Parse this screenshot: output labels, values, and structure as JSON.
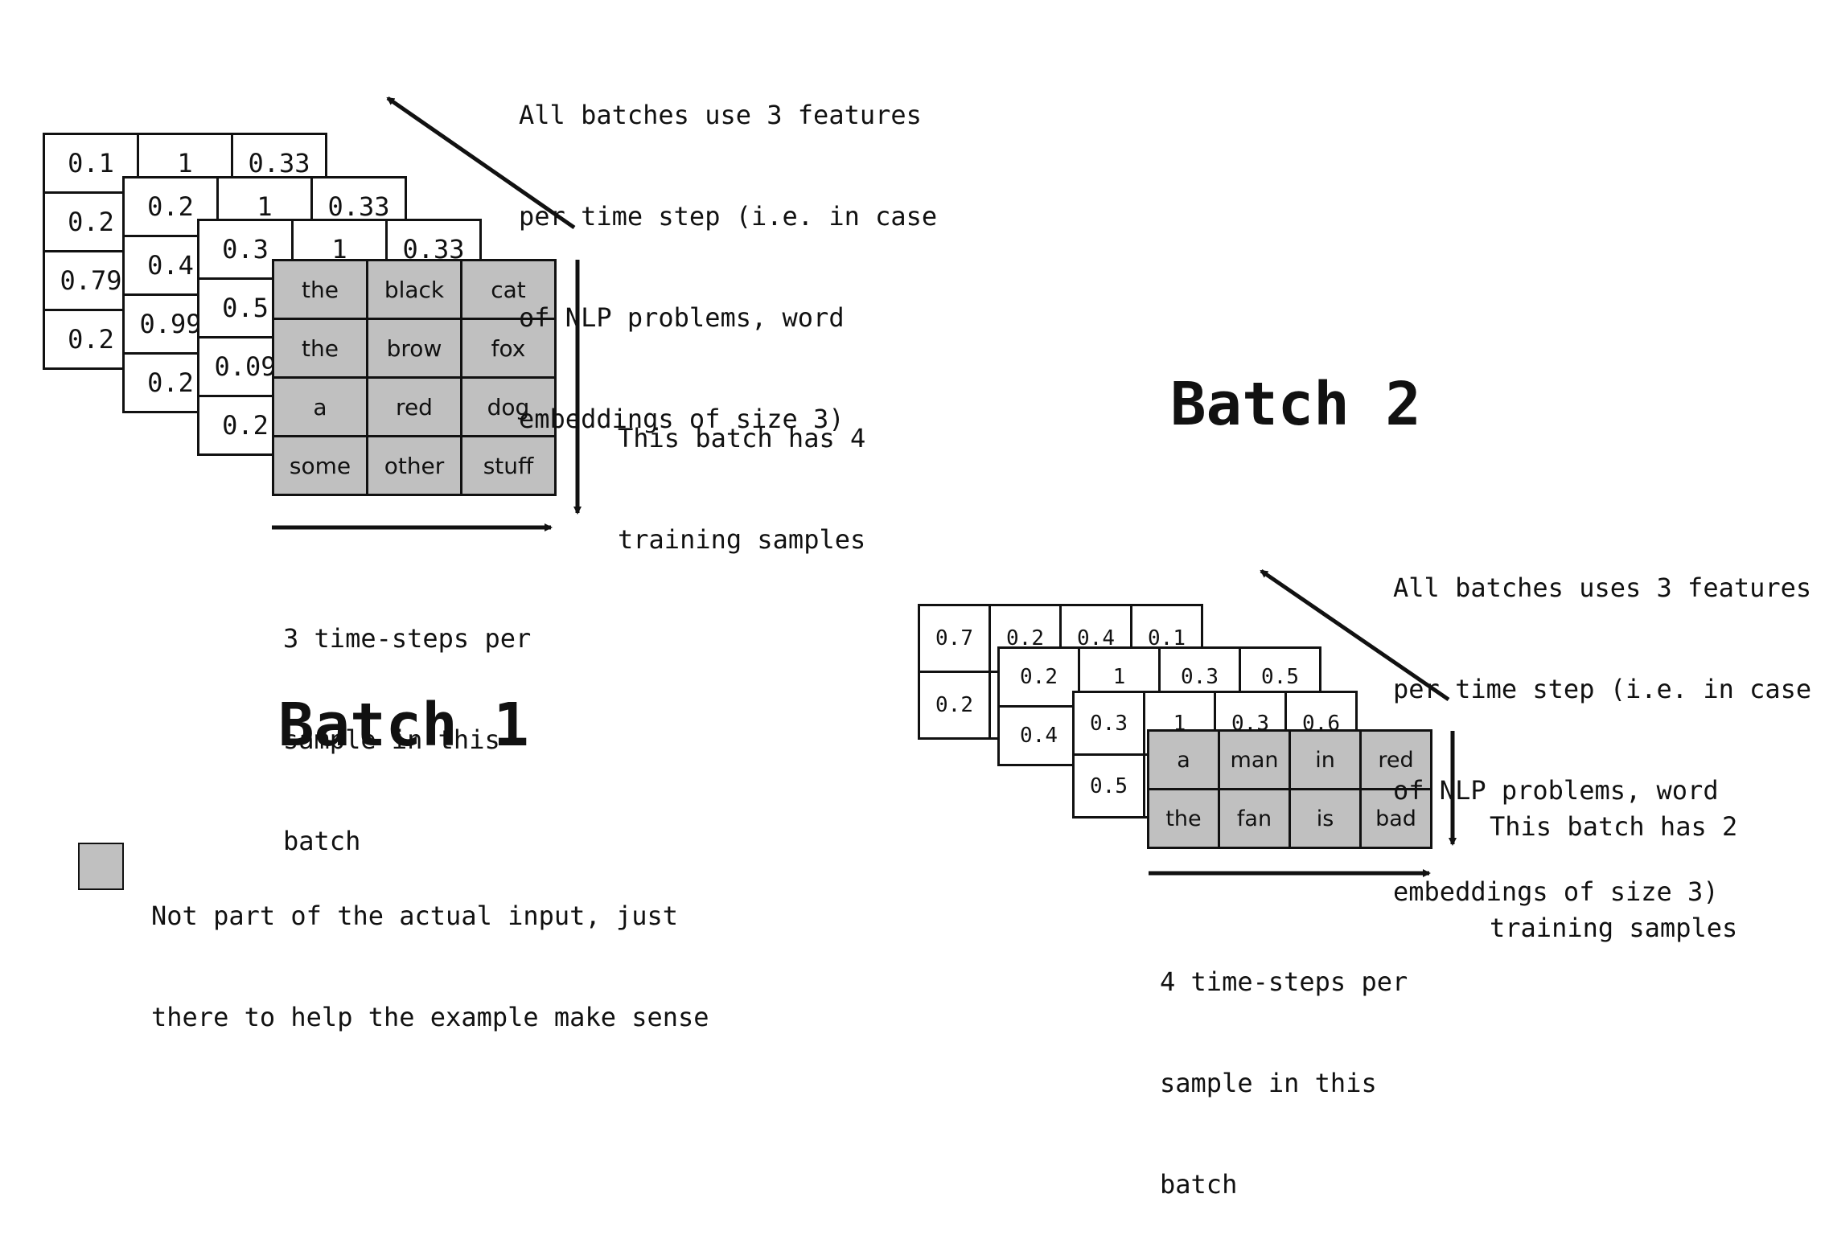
{
  "batch1": {
    "title": "Batch 1",
    "features_note": [
      "All batches use 3 features",
      "per time step (i.e. in case",
      "of NLP problems, word",
      "embeddings of size 3)"
    ],
    "samples_note": [
      "This batch has 4",
      "training samples"
    ],
    "timesteps_note": [
      "3 time-steps per",
      "sample in this",
      "batch"
    ],
    "layer1": [
      [
        "0.1",
        "1",
        "0.33"
      ],
      [
        "0.2",
        "",
        ""
      ],
      [
        "0.79",
        "",
        ""
      ],
      [
        "0.2",
        "",
        ""
      ]
    ],
    "layer2": [
      [
        "0.2",
        "1",
        "0.33"
      ],
      [
        "0.4",
        "",
        ""
      ],
      [
        "0.99",
        "",
        ""
      ],
      [
        "0.2",
        "",
        ""
      ]
    ],
    "layer3": [
      [
        "0.3",
        "1",
        "0.33"
      ],
      [
        "0.5",
        "",
        ""
      ],
      [
        "0.09",
        "",
        ""
      ],
      [
        "0.2",
        "",
        ""
      ]
    ],
    "words": [
      [
        "the",
        "black",
        "cat"
      ],
      [
        "the",
        "brow",
        "fox"
      ],
      [
        "a",
        "red",
        "dog"
      ],
      [
        "some",
        "other",
        "stuff"
      ]
    ]
  },
  "batch2": {
    "title": "Batch 2",
    "features_note": [
      "All batches uses 3 features",
      "per time step (i.e. in case",
      "of NLP problems, word",
      "embeddings of size 3)"
    ],
    "samples_note": [
      "This batch has 2",
      "training samples"
    ],
    "timesteps_note": [
      "4 time-steps per",
      "sample in this",
      "batch"
    ],
    "layer1": [
      [
        "0.7",
        "0.2",
        "0.4",
        "0.1"
      ],
      [
        "0.2",
        "",
        "",
        ""
      ]
    ],
    "layer2": [
      [
        "0.2",
        "1",
        "0.3",
        "0.5"
      ],
      [
        "0.4",
        "",
        "",
        ""
      ]
    ],
    "layer3": [
      [
        "0.3",
        "1",
        "0.3",
        "0.6"
      ],
      [
        "0.5",
        "",
        "",
        ""
      ]
    ],
    "words": [
      [
        "a",
        "man",
        "in",
        "red"
      ],
      [
        "the",
        "fan",
        "is",
        "bad"
      ]
    ]
  },
  "legend": {
    "text": [
      "Not part of the actual input, just",
      "there to help the example make sense"
    ],
    "swatch_color": "#c0c0c0"
  }
}
